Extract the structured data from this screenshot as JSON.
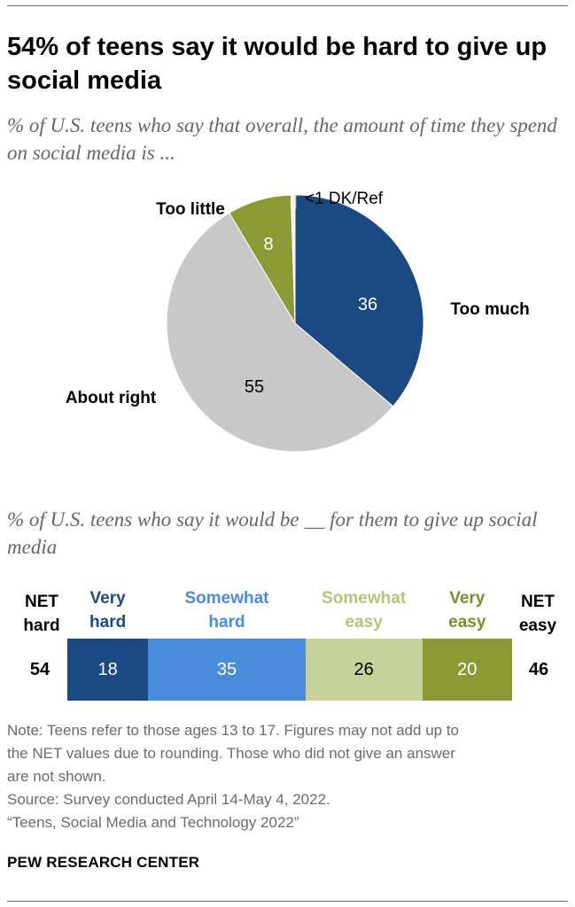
{
  "title": "54% of teens say it would be hard to give up social media",
  "pie_subtitle": "% of U.S. teens who say that overall, the amount of time they spend on social media is ...",
  "bar_subtitle": "% of U.S. teens who say it would be __ for them to give up social media",
  "chart_data": [
    {
      "type": "pie",
      "title": "% of U.S. teens who say that overall, the amount of time they spend on social media is ...",
      "slices": [
        {
          "label": "Too much",
          "value": 36,
          "value_label": "36",
          "color": "#1b4a82"
        },
        {
          "label": "About right",
          "value": 55,
          "value_label": "55",
          "color": "#c8c8c8"
        },
        {
          "label": "Too little",
          "value": 8,
          "value_label": "8",
          "color": "#8c9a35"
        },
        {
          "label": "DK/Ref",
          "value": 0.5,
          "value_label": "<1",
          "color": "#f1f1f1"
        }
      ]
    },
    {
      "type": "bar",
      "orientation": "horizontal-stacked",
      "title": "% of U.S. teens who say it would be __ for them to give up social media",
      "net_hard": {
        "label": "NET hard",
        "value": 54
      },
      "net_easy": {
        "label": "NET easy",
        "value": 46
      },
      "segments": [
        {
          "label": "Very hard",
          "value": 18,
          "color": "#1b4a82",
          "text_color": "#ffffff",
          "label_color": "#1b4a82"
        },
        {
          "label": "Somewhat hard",
          "value": 35,
          "color": "#4a8cdc",
          "text_color": "#ffffff",
          "label_color": "#4a8cdc"
        },
        {
          "label": "Somewhat easy",
          "value": 26,
          "color": "#c5d39a",
          "text_color": "#000000",
          "label_color": "#b4c47a"
        },
        {
          "label": "Very easy",
          "value": 20,
          "color": "#8c9a35",
          "text_color": "#ffffff",
          "label_color": "#7e8c2c"
        }
      ]
    }
  ],
  "notes": [
    "Note: Teens refer to those ages 13 to 17. Figures may not add up to",
    "the NET values due to rounding. Those who did not give an answer",
    "are not shown.",
    "Source: Survey conducted April 14-May 4, 2022.",
    "“Teens, Social Media and Technology 2022”"
  ],
  "brand": "PEW RESEARCH CENTER"
}
